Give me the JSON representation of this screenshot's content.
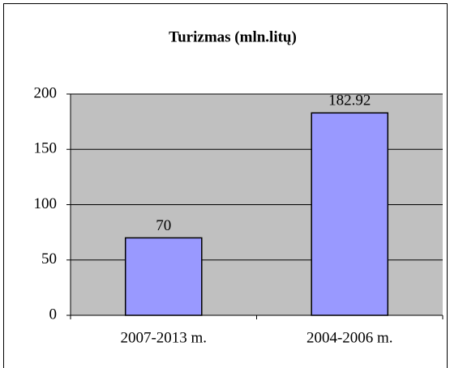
{
  "chart_data": {
    "type": "bar",
    "title": "Turizmas (mln.litų)",
    "categories": [
      "2007-2013 m.",
      "2004-2006 m."
    ],
    "values": [
      70,
      182.92
    ],
    "color": "#9999ff",
    "ylim": [
      0,
      200
    ],
    "yticks": [
      0,
      50,
      100,
      150,
      200
    ],
    "grid": true
  }
}
